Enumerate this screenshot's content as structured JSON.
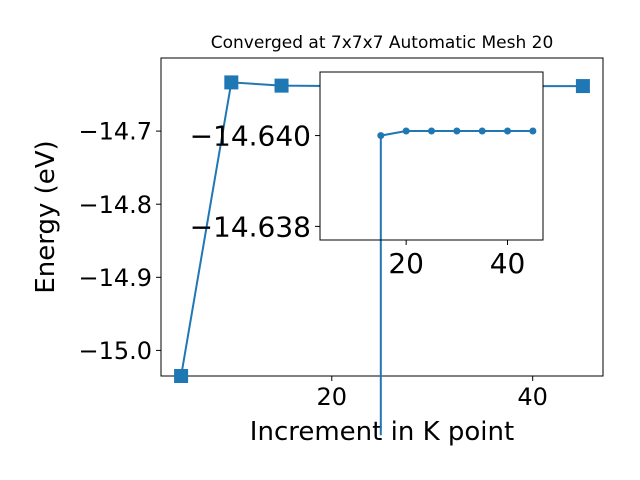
{
  "chart_data": [
    {
      "type": "line",
      "title": "Converged at 7x7x7 Automatic Mesh 20",
      "xlabel": "Increment in K point",
      "ylabel": "Energy (eV)",
      "xlim": [
        3,
        47
      ],
      "ylim": [
        -15.035,
        -14.6
      ],
      "x": [
        5,
        10,
        15,
        20,
        25,
        30,
        35,
        40,
        45
      ],
      "series": [
        {
          "marker": "square",
          "values": [
            -15.035,
            -14.6334,
            -14.6378,
            -14.6383,
            -14.6384,
            -14.6384,
            -14.6384,
            -14.6384,
            -14.6384
          ]
        }
      ],
      "xticks": [
        20,
        40
      ],
      "xtick_labels": [
        "20",
        "40"
      ],
      "yticks": [
        -14.7,
        -14.8,
        -14.9,
        -15.0
      ],
      "ytick_labels": [
        "−14.7",
        "−14.8",
        "−14.9",
        "−15.0"
      ],
      "grid": false,
      "color": "#1f77b4"
    },
    {
      "type": "line",
      "xlim": [
        3,
        47
      ],
      "ylim": [
        -14.6377,
        -14.6414
      ],
      "x": [
        15,
        20,
        25,
        30,
        35,
        40,
        45
      ],
      "series": [
        {
          "marker": "circle",
          "values": [
            -14.64,
            -14.6401,
            -14.6401,
            -14.6401,
            -14.6401,
            -14.6401,
            -14.6401
          ],
          "start_from": -14.6334
        }
      ],
      "xticks": [
        20,
        40
      ],
      "xtick_labels": [
        "20",
        "40"
      ],
      "yticks": [
        -14.64,
        -14.638
      ],
      "ytick_labels": [
        "−14.640",
        "−14.638"
      ],
      "grid": false,
      "color": "#1f77b4"
    }
  ]
}
